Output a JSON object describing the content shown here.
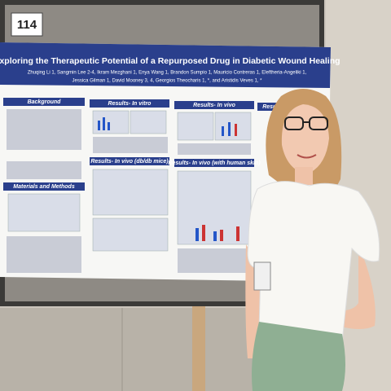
{
  "sign": {
    "number": "114"
  },
  "poster": {
    "title": "Exploring the Therapeutic Potential of a Repurposed Drug in Diabetic Wound Healing",
    "authors": [
      "Zhuqing Li 1, Sangmin Lee 2-4, Ikram Mezghani 1, Enya Wang 1, Brandon Sumpio 1, Mauricio Contreras 1, Eleftheria-Angeliki 1,",
      "Jessica Gilman 1, David Mooney 3, 4, Georgios Theocharis 1, *, and Aristidis Veves 1, *"
    ],
    "sections": [
      "Background",
      "Results- In vitro",
      "Results- In vivo",
      "Results-",
      "Results- In vivo (db/db mice)",
      "Results- In vivo (with human skin)",
      "Materials and Methods"
    ]
  }
}
